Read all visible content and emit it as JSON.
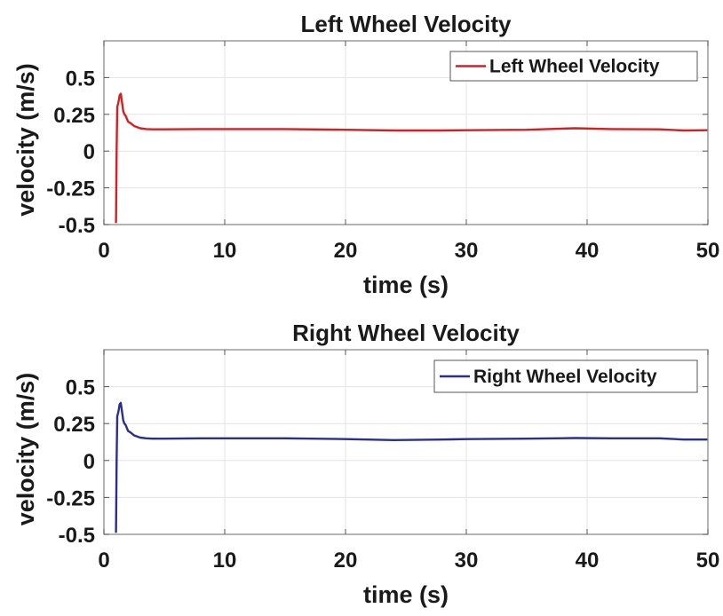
{
  "chart_data": [
    {
      "type": "line",
      "title": "Left Wheel Velocity",
      "xlabel": "time (s)",
      "ylabel": "velocity (m/s)",
      "xlim": [
        0,
        50
      ],
      "ylim": [
        -0.5,
        0.75
      ],
      "xticks": [
        0,
        10,
        20,
        30,
        40,
        50
      ],
      "xtick_labels": [
        "0",
        "10",
        "20",
        "30",
        "40",
        "50"
      ],
      "yticks": [
        -0.5,
        -0.25,
        0,
        0.25,
        0.5
      ],
      "ytick_labels": [
        "-0.5",
        "-0.25",
        "0",
        "0.25",
        "0.5"
      ],
      "grid": true,
      "legend": "top-right",
      "series": [
        {
          "name": "Left Wheel Velocity",
          "color": "#d42020",
          "x": [
            1.0,
            1.05,
            1.1,
            1.2,
            1.3,
            1.4,
            1.5,
            1.6,
            1.7,
            1.8,
            2.0,
            2.2,
            2.5,
            3.0,
            3.5,
            4.0,
            5,
            8,
            10,
            15,
            20,
            24,
            28,
            30,
            35,
            39,
            42,
            46,
            48,
            50
          ],
          "y": [
            -0.49,
            0.0,
            0.3,
            0.33,
            0.38,
            0.39,
            0.33,
            0.27,
            0.25,
            0.24,
            0.2,
            0.19,
            0.17,
            0.155,
            0.15,
            0.148,
            0.148,
            0.15,
            0.15,
            0.15,
            0.145,
            0.14,
            0.14,
            0.142,
            0.145,
            0.155,
            0.15,
            0.148,
            0.14,
            0.142
          ]
        }
      ]
    },
    {
      "type": "line",
      "title": "Right Wheel Velocity",
      "xlabel": "time (s)",
      "ylabel": "velocity (m/s)",
      "xlim": [
        0,
        50
      ],
      "ylim": [
        -0.5,
        0.75
      ],
      "xticks": [
        0,
        10,
        20,
        30,
        40,
        50
      ],
      "xtick_labels": [
        "0",
        "10",
        "20",
        "30",
        "40",
        "50"
      ],
      "yticks": [
        -0.5,
        -0.25,
        0,
        0.25,
        0.5
      ],
      "ytick_labels": [
        "-0.5",
        "-0.25",
        "0",
        "0.25",
        "0.5"
      ],
      "grid": true,
      "legend": "top-right",
      "series": [
        {
          "name": "Right Wheel Velocity",
          "color": "#2a2f8f",
          "x": [
            1.0,
            1.05,
            1.1,
            1.2,
            1.3,
            1.4,
            1.5,
            1.6,
            1.7,
            1.8,
            2.0,
            2.2,
            2.5,
            3.0,
            3.5,
            4.0,
            5,
            8,
            10,
            15,
            20,
            24,
            28,
            30,
            35,
            39,
            42,
            46,
            48,
            50
          ],
          "y": [
            -0.49,
            0.0,
            0.3,
            0.33,
            0.38,
            0.39,
            0.33,
            0.27,
            0.25,
            0.24,
            0.2,
            0.19,
            0.17,
            0.155,
            0.15,
            0.148,
            0.148,
            0.15,
            0.15,
            0.15,
            0.145,
            0.138,
            0.142,
            0.145,
            0.148,
            0.152,
            0.15,
            0.15,
            0.142,
            0.142
          ]
        }
      ]
    }
  ]
}
